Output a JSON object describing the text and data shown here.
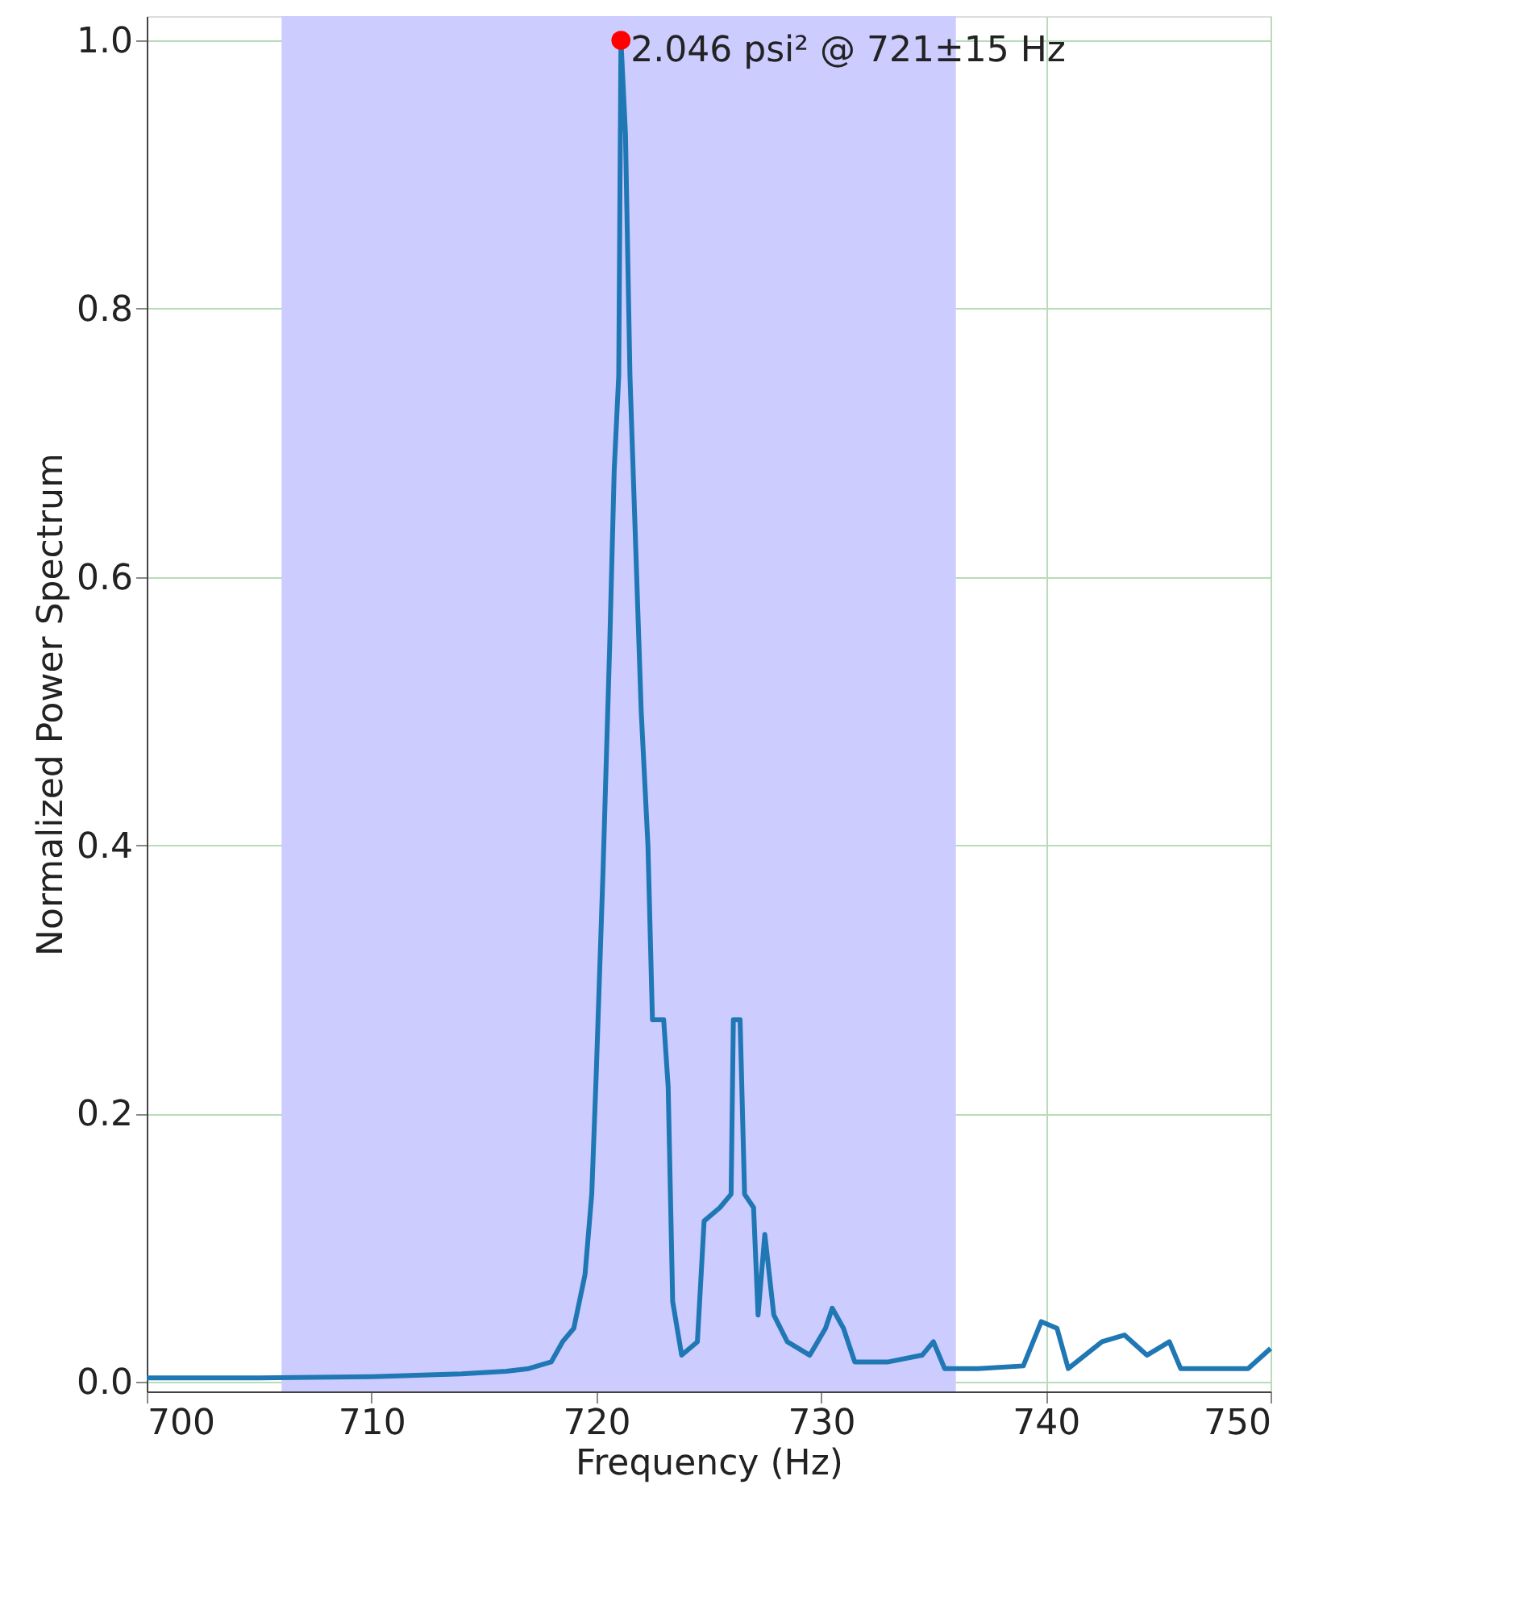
{
  "chart_data": {
    "type": "line",
    "xlabel": "Frequency (Hz)",
    "ylabel": "Normalized Power Spectrum",
    "xlim": [
      700,
      750
    ],
    "ylim": [
      -0.007,
      1.018
    ],
    "xticks": [
      700,
      710,
      720,
      730,
      740,
      750
    ],
    "yticks": [
      {
        "value": 0,
        "label": "0.0"
      },
      0.2,
      0.4,
      0.6,
      0.8,
      {
        "value": 1,
        "label": "1.0"
      }
    ],
    "grid": true,
    "series": [
      {
        "color": "#1f77b4",
        "x": [
          700,
          705,
          710,
          714,
          716,
          717,
          718,
          718.5,
          719,
          719.5,
          719.8,
          720.0,
          720.3,
          720.6,
          720.8,
          721.0,
          721.1,
          721.3,
          721.5,
          721.8,
          722.0,
          722.3,
          722.5,
          723.0,
          723.2,
          723.4,
          723.8,
          724.5,
          724.8,
          725.5,
          726.0,
          726.1,
          726.4,
          726.6,
          727.0,
          727.2,
          727.5,
          727.9,
          728.5,
          729.5,
          730.2,
          730.5,
          731.0,
          731.5,
          733.0,
          734.5,
          735.0,
          735.5,
          737.0,
          739.0,
          739.8,
          740.5,
          741.0,
          742.5,
          743.5,
          744.5,
          745.5,
          746.0,
          749.0,
          750.0
        ],
        "values": [
          0.003,
          0.003,
          0.004,
          0.006,
          0.008,
          0.01,
          0.015,
          0.03,
          0.04,
          0.08,
          0.14,
          0.23,
          0.38,
          0.55,
          0.68,
          0.75,
          1.0,
          0.93,
          0.75,
          0.6,
          0.5,
          0.4,
          0.27,
          0.27,
          0.22,
          0.06,
          0.02,
          0.03,
          0.12,
          0.13,
          0.14,
          0.27,
          0.27,
          0.14,
          0.13,
          0.05,
          0.11,
          0.05,
          0.03,
          0.02,
          0.04,
          0.055,
          0.04,
          0.015,
          0.015,
          0.02,
          0.03,
          0.01,
          0.01,
          0.012,
          0.045,
          0.04,
          0.01,
          0.03,
          0.035,
          0.02,
          0.03,
          0.01,
          0.01,
          0.025
        ]
      },
      {
        "type": "scatter",
        "color": "#ff0000",
        "marker": "circle",
        "x": [
          721.1
        ],
        "values": [
          1.0
        ]
      }
    ],
    "bands": [
      {
        "axis": "x",
        "from": 706,
        "to": 736,
        "color": "#ccccff"
      }
    ],
    "annotations": [
      {
        "text": "2.046 psi² @ 721±15 Hz",
        "x": 721.1,
        "y": 1.0
      }
    ]
  }
}
